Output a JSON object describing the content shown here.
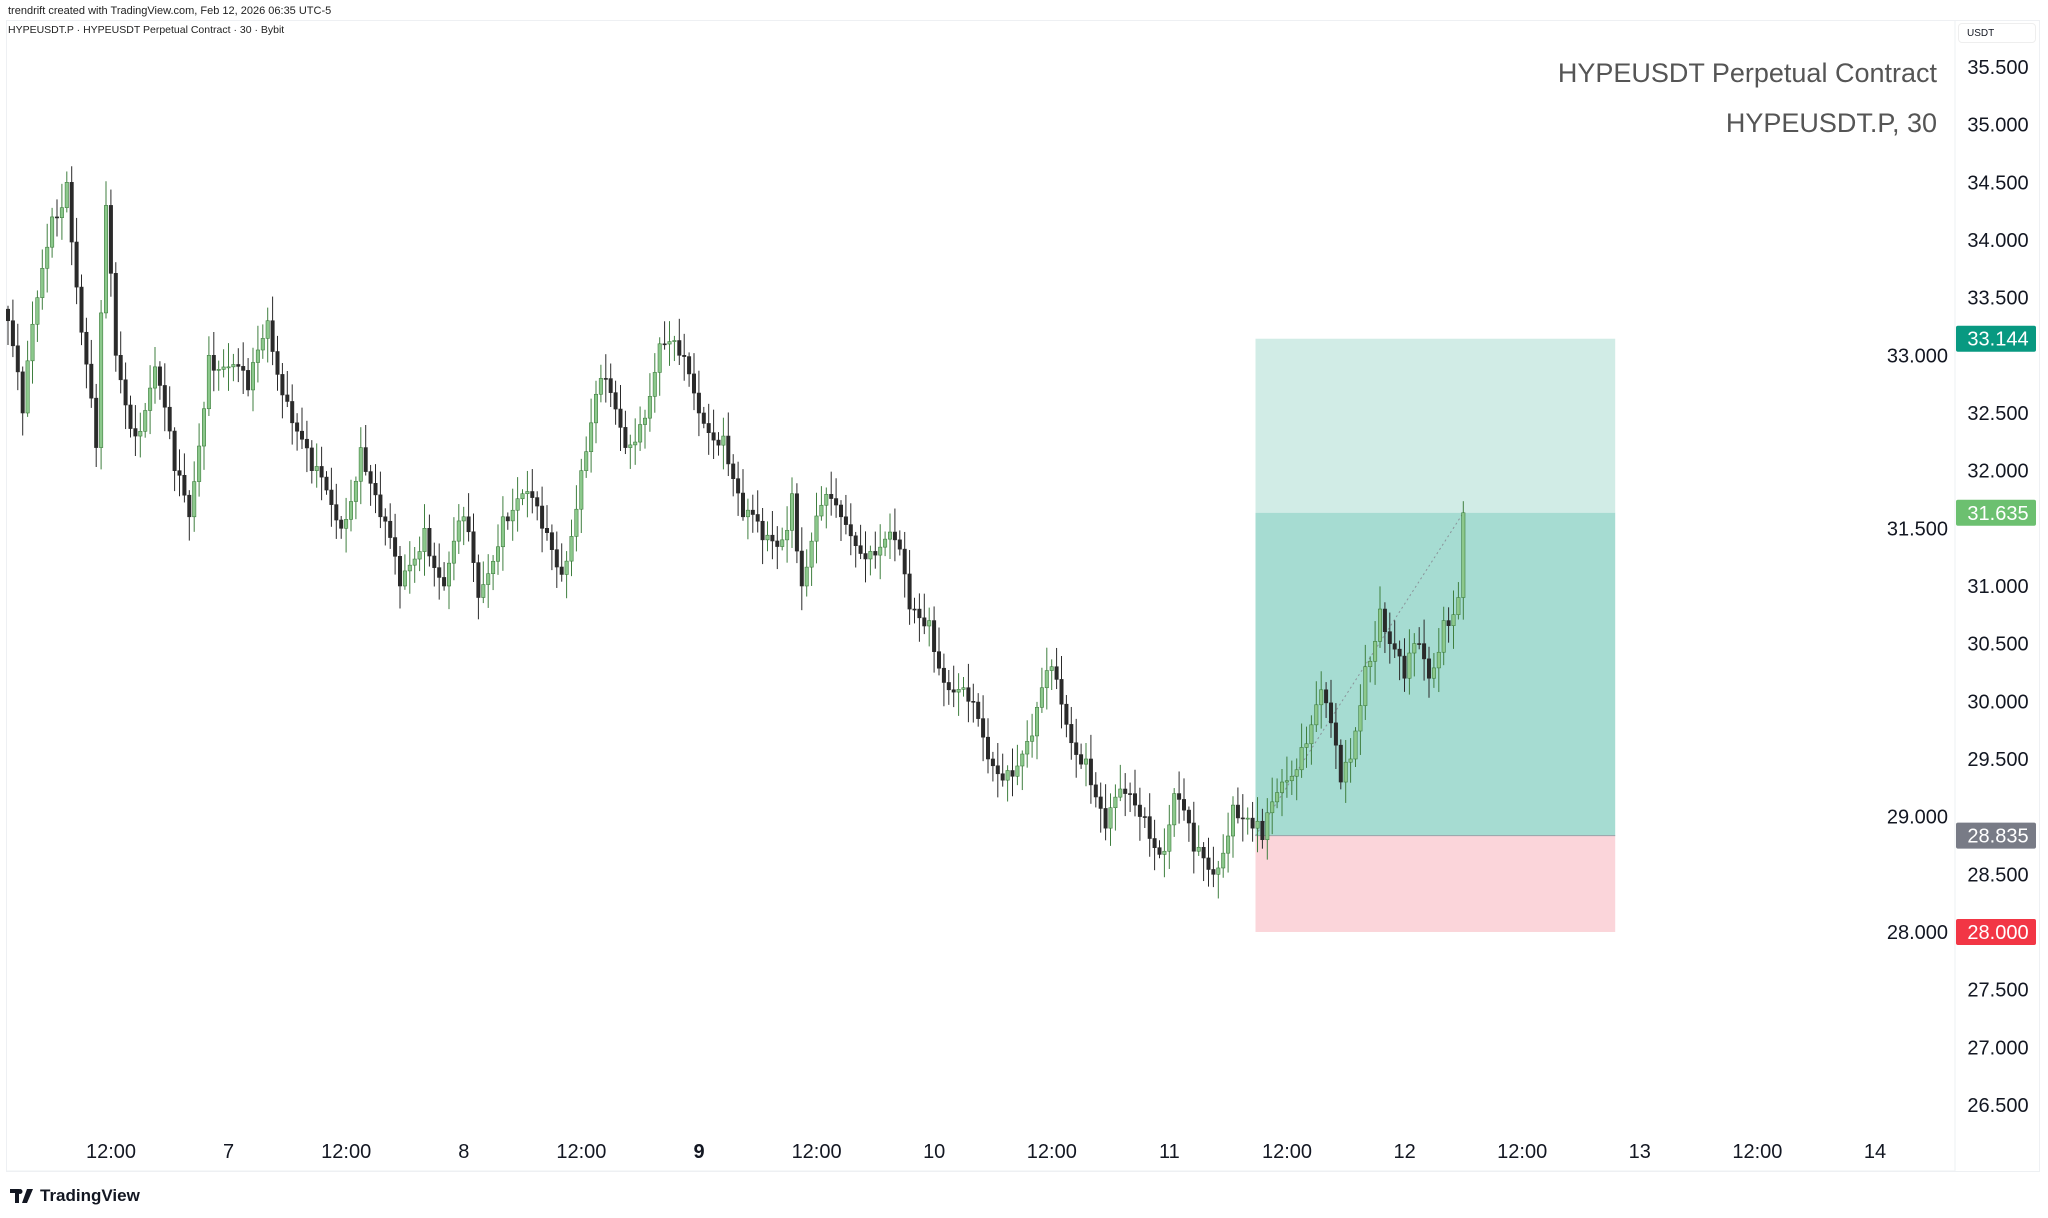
{
  "attribution": "trendrift created with TradingView.com, Feb 12, 2026 06:35 UTC-5",
  "symbol_bar": "HYPEUSDT.P · HYPEUSDT Perpetual Contract · 30 · Bybit",
  "currency": "USDT",
  "watermark": {
    "line1": "HYPEUSDT Perpetual Contract",
    "line2": "HYPEUSDT.P, 30"
  },
  "brand": "TradingView",
  "colors": {
    "up": "#8cc88c",
    "up_border": "#3f7f3f",
    "down": "#2a2a2a",
    "target": "#089981",
    "current": "#6cc070",
    "entry": "#787b86",
    "stop": "#f23645"
  },
  "chart_data": {
    "type": "candlestick",
    "interval": "30",
    "price_ticks": [
      "35.500",
      "35.000",
      "34.500",
      "34.000",
      "33.500",
      "33.000",
      "32.500",
      "32.000",
      "31.500",
      "31.000",
      "30.500",
      "30.000",
      "29.500",
      "29.000",
      "28.500",
      "28.000",
      "27.500",
      "27.000",
      "26.500"
    ],
    "ylim": [
      26.2,
      35.9
    ],
    "time_ticks": [
      {
        "label": "12:00",
        "candle": 20
      },
      {
        "label": "7",
        "candle": 44
      },
      {
        "label": "12:00",
        "candle": 68
      },
      {
        "label": "8",
        "candle": 92
      },
      {
        "label": "12:00",
        "candle": 116
      },
      {
        "label": "9",
        "candle": 140,
        "bold": true
      },
      {
        "label": "12:00",
        "candle": 164
      },
      {
        "label": "10",
        "candle": 188
      },
      {
        "label": "12:00",
        "candle": 212
      },
      {
        "label": "11",
        "candle": 236
      },
      {
        "label": "12:00",
        "candle": 260
      },
      {
        "label": "12",
        "candle": 284
      },
      {
        "label": "12:00",
        "candle": 308
      },
      {
        "label": "13",
        "candle": 332
      },
      {
        "label": "12:00",
        "candle": 356
      },
      {
        "label": "14",
        "candle": 380
      }
    ],
    "approx_close_path": [
      [
        0,
        33.3
      ],
      [
        3,
        32.5
      ],
      [
        6,
        33.5
      ],
      [
        9,
        34.2
      ],
      [
        12,
        34.5
      ],
      [
        15,
        33.2
      ],
      [
        18,
        32.2
      ],
      [
        20,
        34.3
      ],
      [
        22,
        33.0
      ],
      [
        26,
        32.3
      ],
      [
        30,
        32.9
      ],
      [
        34,
        32.0
      ],
      [
        37,
        31.6
      ],
      [
        41,
        33.0
      ],
      [
        45,
        32.9
      ],
      [
        49,
        32.7
      ],
      [
        53,
        33.3
      ],
      [
        57,
        32.6
      ],
      [
        62,
        32.0
      ],
      [
        68,
        31.5
      ],
      [
        72,
        32.2
      ],
      [
        76,
        31.6
      ],
      [
        80,
        31.0
      ],
      [
        85,
        31.5
      ],
      [
        89,
        31.0
      ],
      [
        93,
        31.6
      ],
      [
        96,
        30.9
      ],
      [
        101,
        31.6
      ],
      [
        105,
        31.8
      ],
      [
        109,
        31.5
      ],
      [
        113,
        31.1
      ],
      [
        117,
        32.0
      ],
      [
        121,
        32.8
      ],
      [
        126,
        32.2
      ],
      [
        129,
        32.4
      ],
      [
        133,
        33.1
      ],
      [
        137,
        33.0
      ],
      [
        141,
        32.5
      ],
      [
        146,
        32.3
      ],
      [
        150,
        31.6
      ],
      [
        154,
        31.4
      ],
      [
        158,
        31.4
      ],
      [
        160,
        31.8
      ],
      [
        162,
        31.0
      ],
      [
        166,
        31.7
      ],
      [
        170,
        31.6
      ],
      [
        176,
        31.3
      ],
      [
        181,
        31.4
      ],
      [
        184,
        30.8
      ],
      [
        188,
        30.7
      ],
      [
        192,
        30.1
      ],
      [
        196,
        30.0
      ],
      [
        200,
        29.5
      ],
      [
        204,
        29.4
      ],
      [
        209,
        29.7
      ],
      [
        213,
        30.3
      ],
      [
        216,
        29.8
      ],
      [
        220,
        29.5
      ],
      [
        224,
        28.9
      ],
      [
        228,
        29.2
      ],
      [
        232,
        29.0
      ],
      [
        236,
        28.7
      ],
      [
        238,
        29.2
      ],
      [
        242,
        28.7
      ],
      [
        246,
        28.5
      ],
      [
        250,
        29.1
      ],
      [
        254,
        28.9
      ],
      [
        256,
        28.8
      ],
      [
        260,
        29.3
      ],
      [
        264,
        29.6
      ],
      [
        268,
        30.1
      ],
      [
        272,
        29.3
      ],
      [
        274,
        29.5
      ],
      [
        277,
        30.3
      ],
      [
        280,
        30.8
      ],
      [
        282,
        30.5
      ],
      [
        285,
        30.2
      ],
      [
        288,
        30.5
      ],
      [
        290,
        30.2
      ],
      [
        293,
        30.7
      ],
      [
        296,
        30.9
      ],
      [
        297,
        31.635
      ]
    ],
    "position": {
      "type": "long",
      "start_candle": 255,
      "end_candle": 328,
      "target": "33.144",
      "current": "31.635",
      "entry": "28.835",
      "stop": "28.000"
    }
  }
}
